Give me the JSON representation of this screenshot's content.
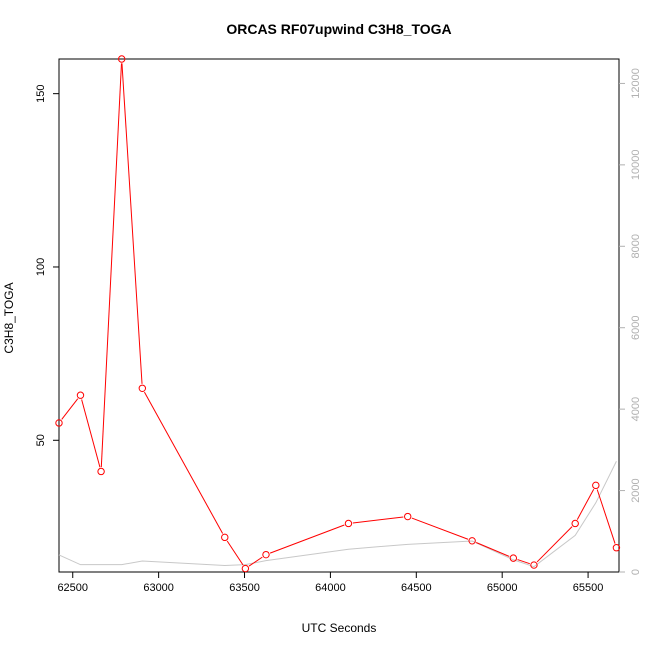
{
  "chart_data": {
    "type": "line",
    "title": "ORCAS RF07upwind C3H8_TOGA",
    "xlabel": "UTC Seconds",
    "ylabel": "C3H8_TOGA",
    "xlim": [
      62420,
      65680
    ],
    "ylim": [
      12,
      160
    ],
    "y2lim": [
      0,
      12600
    ],
    "xticks": [
      62500,
      63000,
      63500,
      64000,
      64500,
      65000,
      65500
    ],
    "yticks": [
      50,
      100,
      150
    ],
    "y2ticks": [
      0,
      2000,
      4000,
      6000,
      8000,
      10000,
      12000
    ],
    "series": [
      {
        "color": "#ff0000",
        "axis": "left",
        "markers": "open-circle",
        "x": [
          62420,
          62545,
          62665,
          62785,
          62905,
          63385,
          63505,
          63625,
          64105,
          64450,
          64825,
          65065,
          65185,
          65425,
          65545,
          65665
        ],
        "values": [
          55,
          63,
          41,
          160,
          65,
          22,
          13,
          17,
          26,
          28,
          21,
          16,
          14,
          26,
          37,
          19
        ]
      },
      {
        "color": "#c8c8c8",
        "axis": "right",
        "markers": "none",
        "x": [
          62420,
          62545,
          62665,
          62785,
          62905,
          63385,
          63505,
          63625,
          64105,
          64450,
          64825,
          65065,
          65185,
          65425,
          65545,
          65665
        ],
        "values": [
          420,
          180,
          180,
          180,
          270,
          160,
          180,
          280,
          560,
          680,
          760,
          300,
          130,
          900,
          1700,
          2720
        ]
      }
    ]
  }
}
